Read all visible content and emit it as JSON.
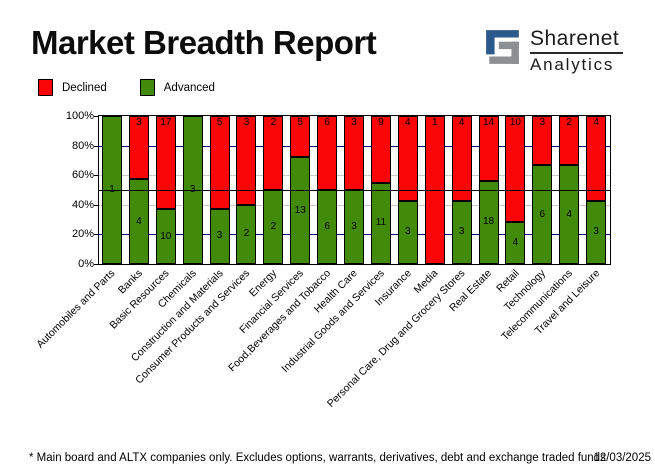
{
  "page": {
    "title": "Market Breadth Report",
    "footnote": "* Main board and ALTX companies only. Excludes options, warrants, derivatives, debt and exchange traded funds",
    "date": "12/03/2025"
  },
  "logo": {
    "brand": "Sharenet",
    "sub": "Analytics",
    "blue": "#2B598B",
    "gray": "#8C9093"
  },
  "legend": [
    {
      "label": "Declined",
      "color": "#FA0505"
    },
    {
      "label": "Advanced",
      "color": "#428A0A"
    }
  ],
  "chart_data": {
    "type": "bar",
    "stacked": true,
    "normalized": "percent-of-total",
    "title": "Market Breadth Report",
    "categories": [
      "Automobiles and Parts",
      "Banks",
      "Basic Resources",
      "Chemicals",
      "Construction and Materials",
      "Consumer Products and Services",
      "Energy",
      "Financial Services",
      "Food,Beverages and Tobacco",
      "Health Care",
      "Industrial Goods and Services",
      "Insurance",
      "Media",
      "Personal Care, Drug and Grocery Stores",
      "Real Estate",
      "Retail",
      "Technology",
      "Telecommunications",
      "Travel and Leisure"
    ],
    "series": [
      {
        "name": "Declined",
        "color": "#FA0505",
        "values": [
          0,
          3,
          17,
          0,
          5,
          3,
          2,
          5,
          6,
          3,
          9,
          4,
          1,
          4,
          14,
          10,
          3,
          2,
          4
        ]
      },
      {
        "name": "Advanced",
        "color": "#428A0A",
        "values": [
          1,
          4,
          10,
          3,
          3,
          2,
          2,
          13,
          6,
          3,
          11,
          3,
          0,
          3,
          18,
          4,
          6,
          4,
          3
        ]
      }
    ],
    "ylim": [
      0,
      100
    ],
    "y_ticks": [
      "100%",
      "80%",
      "60%",
      "40%",
      "20%",
      "0%"
    ],
    "gridlines": [
      {
        "pct": 80,
        "color": "#000080"
      },
      {
        "pct": 60,
        "color": "#C8C8C8"
      },
      {
        "pct": 40,
        "color": "#C8C8C8"
      },
      {
        "pct": 20,
        "color": "#000080"
      }
    ],
    "reference_line": {
      "pct": 50,
      "color": "#000000"
    },
    "legend_position": "top-left",
    "x_label_rotation_deg": -45
  }
}
